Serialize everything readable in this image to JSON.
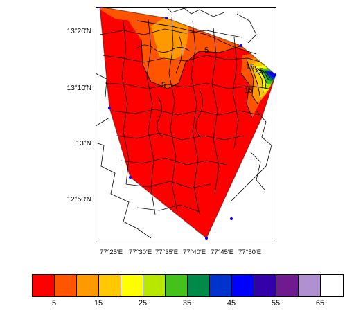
{
  "map": {
    "lat_labels": [
      "13°20′N",
      "13°10′N",
      "13°N",
      "12°50′N"
    ],
    "lon_labels": [
      "77°25′E",
      "77°30′E",
      "77°35′E",
      "77°40′E",
      "77°45′E",
      "77°50′E"
    ],
    "contour_labels": [
      "5",
      "5",
      "15",
      "15",
      "25"
    ]
  },
  "legend": {
    "colors": [
      "#ff0000",
      "#ff5500",
      "#ff9900",
      "#ffc800",
      "#ffff00",
      "#b9e800",
      "#44c11a",
      "#008a4a",
      "#0033cc",
      "#0000ff",
      "#3300aa",
      "#6f1a8f",
      "#b090d0",
      "#ffffff"
    ],
    "labels": [
      "5",
      "15",
      "25",
      "35",
      "45",
      "55",
      "65"
    ]
  }
}
